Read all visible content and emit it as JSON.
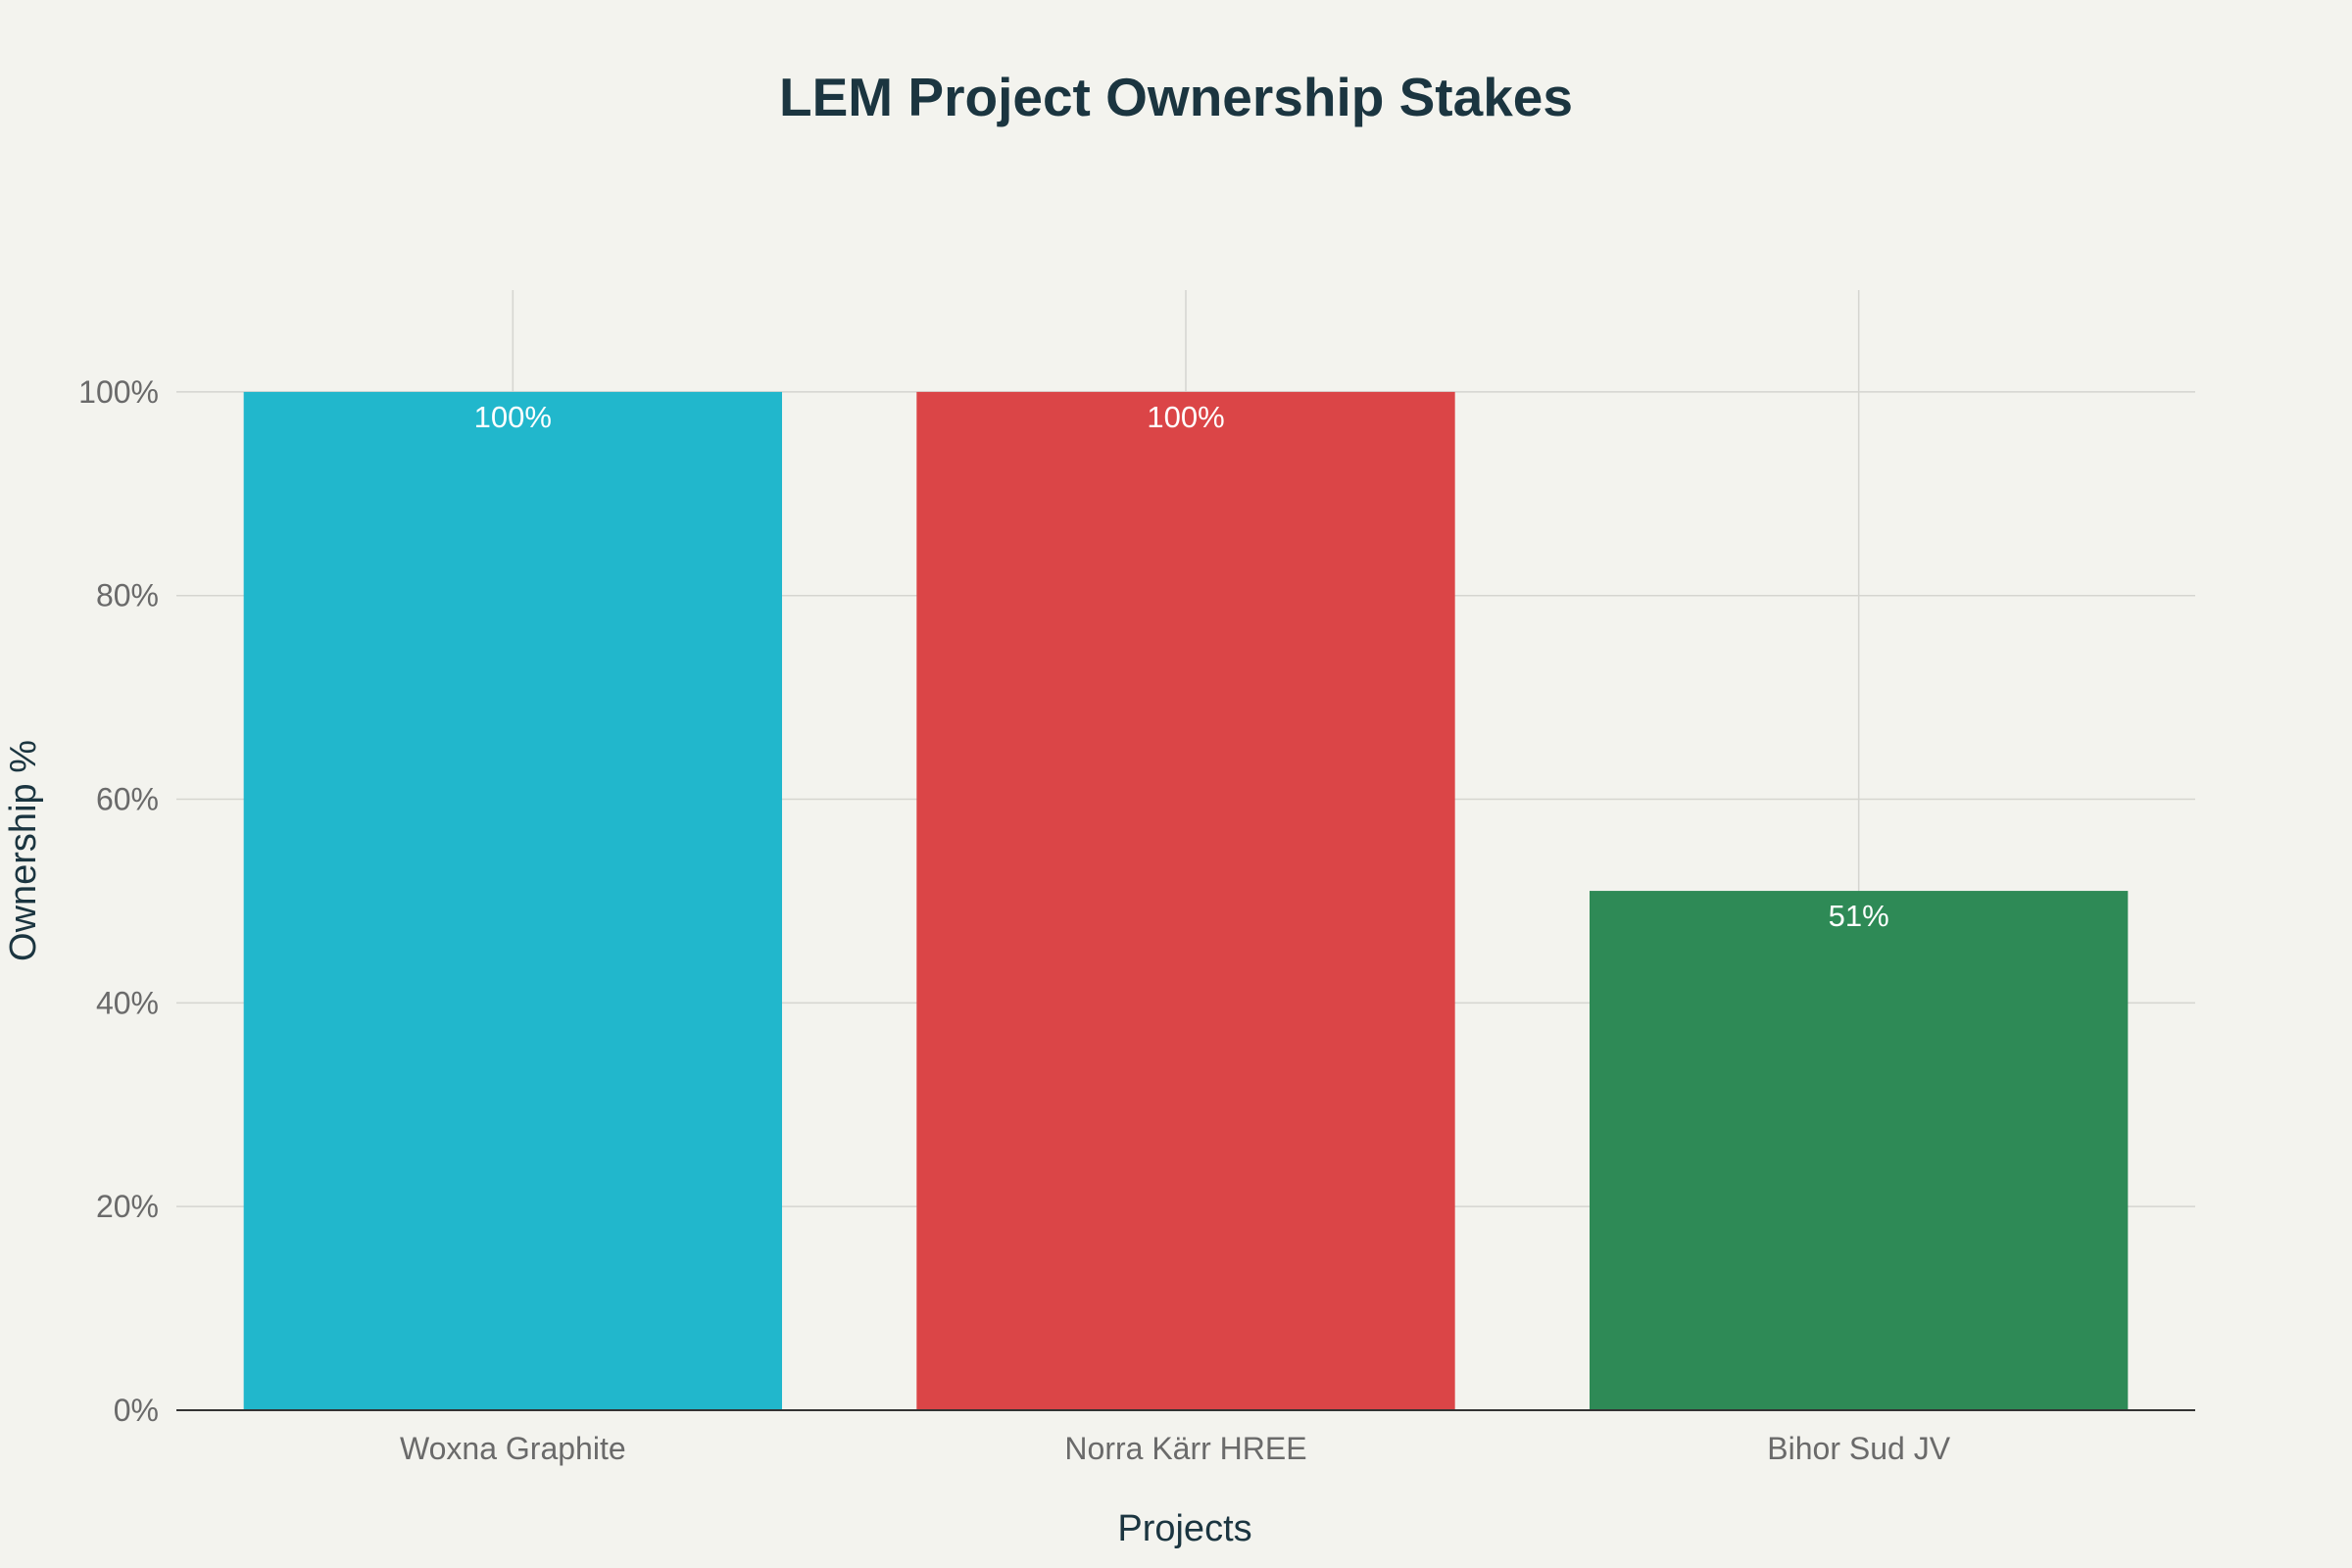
{
  "chart_data": {
    "type": "bar",
    "title": "LEM Project Ownership Stakes",
    "xlabel": "Projects",
    "ylabel": "Ownership %",
    "categories": [
      "Woxna Graphite",
      "Norra Kärr HREE",
      "Bihor Sud JV"
    ],
    "values": [
      100,
      100,
      51
    ],
    "value_labels": [
      "100%",
      "100%",
      "51%"
    ],
    "colors": [
      "#21b7cc",
      "#db4547",
      "#2e8a56"
    ],
    "ylim": [
      0,
      110
    ],
    "yticks": [
      0,
      20,
      40,
      60,
      80,
      100
    ],
    "ytick_labels": [
      "0%",
      "20%",
      "40%",
      "60%",
      "80%",
      "100%"
    ],
    "grid": true,
    "legend": "none"
  }
}
